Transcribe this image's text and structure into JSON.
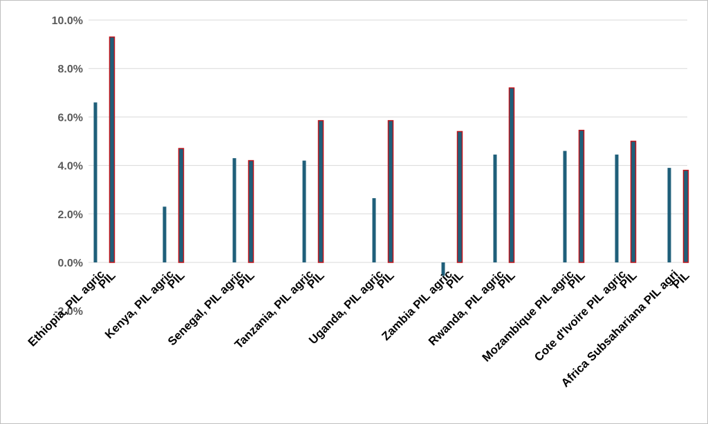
{
  "chart_data": {
    "type": "bar",
    "categories": [
      "Ethiopia, PIL agric",
      "PIL",
      "Kenya, PIL agric",
      "PIL",
      "Senegal, PIL agric",
      "PIL",
      "Tanzania, PIL agric",
      "PIL",
      "Uganda, PIL agric",
      "PIL",
      "Zambia PIL agric",
      "PIL",
      "Rwanda, PIL agric",
      "PIL",
      "Mozambique PIL agric",
      "PIL",
      "Cote d'Ivoire PIL agric",
      "PIL",
      "Africa Subsahariana PIL agri",
      "PIL"
    ],
    "values": [
      6.6,
      9.3,
      2.3,
      4.7,
      4.3,
      4.2,
      4.2,
      5.85,
      2.65,
      5.85,
      -0.55,
      5.4,
      4.45,
      7.2,
      4.6,
      5.45,
      4.45,
      5.0,
      3.9,
      3.8
    ],
    "bar_kinds": [
      "agric",
      "total",
      "agric",
      "total",
      "agric",
      "total",
      "agric",
      "total",
      "agric",
      "total",
      "agric",
      "total",
      "agric",
      "total",
      "agric",
      "total",
      "agric",
      "total",
      "agric",
      "total"
    ],
    "colors": {
      "agric": "#1f5f7a",
      "total": "#c0161d",
      "total_fill": "#1f5f7a"
    },
    "title": "",
    "xlabel": "",
    "ylabel": "",
    "ylim": [
      -2,
      10
    ],
    "yticks": [
      "-2.0%",
      "0.0%",
      "2.0%",
      "4.0%",
      "6.0%",
      "8.0%",
      "10.0%"
    ],
    "grid": true,
    "legend": "none"
  }
}
